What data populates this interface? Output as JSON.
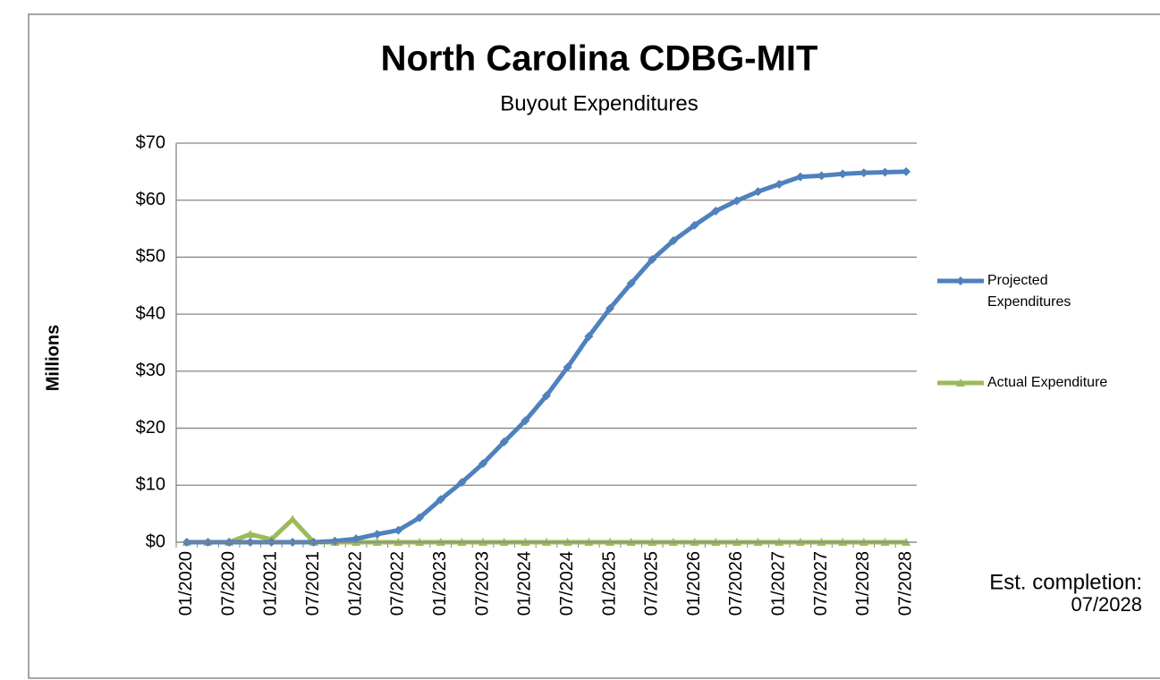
{
  "chart_data": {
    "type": "line",
    "title": "North Carolina CDBG-MIT",
    "subtitle": "Buyout Expenditures",
    "y_label": "Millions",
    "annotation": [
      "Est. completion:",
      "07/2028"
    ],
    "categories": [
      "01/2020",
      null,
      "07/2020",
      null,
      "01/2021",
      null,
      "07/2021",
      null,
      "01/2022",
      null,
      "07/2022",
      null,
      "01/2023",
      null,
      "07/2023",
      null,
      "01/2024",
      null,
      "07/2024",
      null,
      "01/2025",
      null,
      "07/2025",
      null,
      "01/2026",
      null,
      "07/2026",
      null,
      "01/2027",
      null,
      "07/2027",
      null,
      "01/2028",
      null,
      "07/2028"
    ],
    "series": [
      {
        "name": "Projected Expenditures",
        "color": "#4f81bd",
        "marker": "diamond",
        "values": [
          0,
          0,
          0,
          0,
          0,
          0,
          0,
          0.2,
          0.6,
          1.4,
          2.1,
          4.3,
          7.5,
          10.5,
          13.8,
          17.6,
          21.3,
          25.7,
          30.7,
          36.1,
          41.0,
          45.4,
          49.6,
          52.9,
          55.6,
          58.1,
          59.9,
          61.5,
          62.8,
          64.1,
          64.3,
          64.6,
          64.8,
          64.9,
          65.0
        ]
      },
      {
        "name": "Actual Expenditure",
        "color": "#9bbb59",
        "marker": "triangle",
        "values": [
          0,
          0,
          0,
          1.4,
          0.5,
          4.0,
          0,
          0,
          0,
          0,
          0,
          0,
          0,
          0,
          0,
          0,
          0,
          0,
          0,
          0,
          0,
          0,
          0,
          0,
          0,
          0,
          0,
          0,
          0,
          0,
          0,
          0,
          0,
          0,
          0
        ]
      }
    ],
    "ylim": [
      0,
      70
    ],
    "yticks": [
      {
        "value": 0,
        "label": "$0"
      },
      {
        "value": 10,
        "label": "$10"
      },
      {
        "value": 20,
        "label": "$20"
      },
      {
        "value": 30,
        "label": "$30"
      },
      {
        "value": 40,
        "label": "$40"
      },
      {
        "value": 50,
        "label": "$50"
      },
      {
        "value": 60,
        "label": "$60"
      },
      {
        "value": 70,
        "label": "$70"
      }
    ],
    "grid": true,
    "legend": "right"
  }
}
